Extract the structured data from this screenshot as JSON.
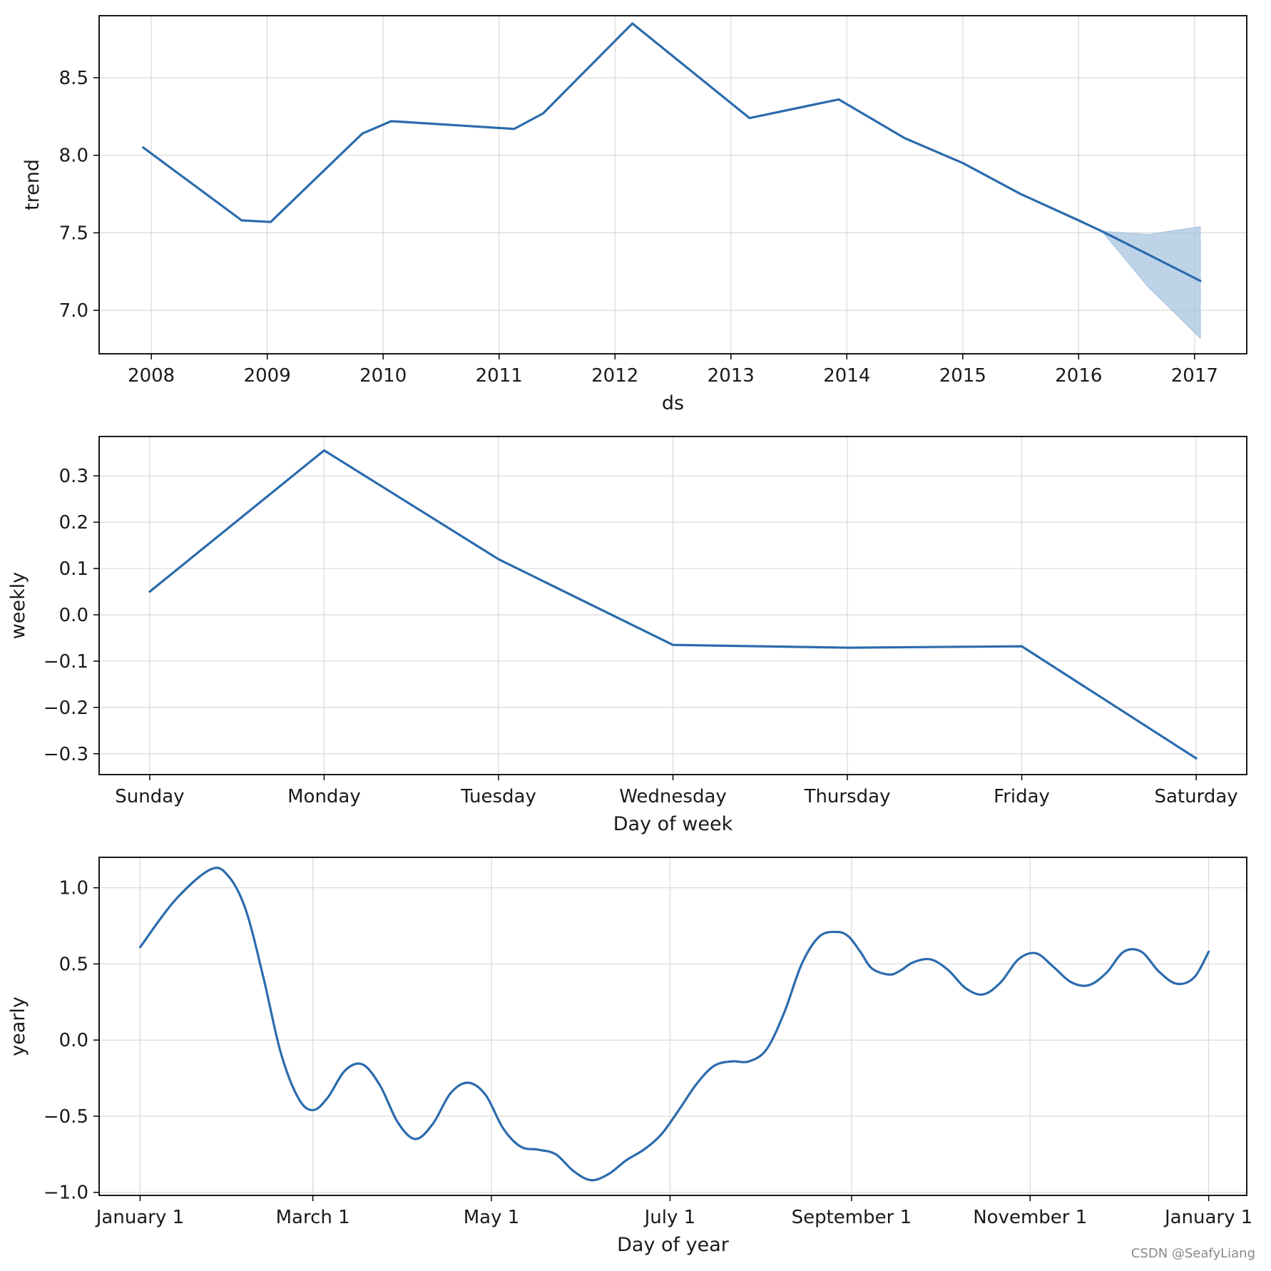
{
  "watermark": "CSDN @SeafyLiang",
  "colors": {
    "line": "#2b6bad",
    "band": "#a9c4e0",
    "grid": "#d9d9d9",
    "axis": "#000000"
  },
  "chart_data": [
    {
      "type": "line",
      "id": "trend",
      "xlabel": "ds",
      "ylabel": "trend",
      "xlim": [
        2007.55,
        2017.45
      ],
      "ylim": [
        6.72,
        8.9
      ],
      "xticks": [
        2008,
        2009,
        2010,
        2011,
        2012,
        2013,
        2014,
        2015,
        2016,
        2017
      ],
      "xticklabels": [
        "2008",
        "2009",
        "2010",
        "2011",
        "2012",
        "2013",
        "2014",
        "2015",
        "2016",
        "2017"
      ],
      "yticks": [
        7.0,
        7.5,
        8.0,
        8.5
      ],
      "yticklabels": [
        "7.0",
        "7.5",
        "8.0",
        "8.5"
      ],
      "series": [
        {
          "name": "trend",
          "x": [
            2007.93,
            2008.78,
            2009.03,
            2009.82,
            2010.07,
            2011.13,
            2011.38,
            2012.15,
            2013.16,
            2013.93,
            2014.5,
            2015.0,
            2015.5,
            2016.0,
            2016.2,
            2016.6,
            2017.05
          ],
          "y": [
            8.05,
            7.58,
            7.57,
            8.14,
            8.22,
            8.17,
            8.27,
            8.85,
            8.24,
            8.36,
            8.11,
            7.95,
            7.75,
            7.58,
            7.51,
            7.36,
            7.19
          ]
        }
      ],
      "uncertainty": {
        "x": [
          2016.2,
          2016.6,
          2017.05
        ],
        "lower": [
          7.51,
          7.15,
          6.82
        ],
        "upper": [
          7.51,
          7.49,
          7.54
        ]
      }
    },
    {
      "type": "line",
      "id": "weekly",
      "xlabel": "Day of week",
      "ylabel": "weekly",
      "xlim": [
        -0.29,
        6.29
      ],
      "ylim": [
        -0.345,
        0.385
      ],
      "xticks": [
        0,
        1,
        2,
        3,
        4,
        5,
        6
      ],
      "xticklabels": [
        "Sunday",
        "Monday",
        "Tuesday",
        "Wednesday",
        "Thursday",
        "Friday",
        "Saturday"
      ],
      "yticks": [
        -0.3,
        -0.2,
        -0.1,
        0.0,
        0.1,
        0.2,
        0.3
      ],
      "yticklabels": [
        "−0.3",
        "−0.2",
        "−0.1",
        "0.0",
        "0.1",
        "0.2",
        "0.3"
      ],
      "series": [
        {
          "name": "weekly",
          "x": [
            0,
            1,
            2,
            3,
            4,
            5,
            6
          ],
          "y": [
            0.05,
            0.355,
            0.12,
            -0.065,
            -0.071,
            -0.068,
            -0.31
          ]
        }
      ]
    },
    {
      "type": "line",
      "id": "yearly",
      "xlabel": "Day of year",
      "ylabel": "yearly",
      "xlim": [
        -14,
        378
      ],
      "ylim": [
        -1.02,
        1.2
      ],
      "xticks": [
        0,
        59,
        120,
        181,
        243,
        304,
        365
      ],
      "xticklabels": [
        "January 1",
        "March 1",
        "May 1",
        "July 1",
        "September 1",
        "November 1",
        "January 1"
      ],
      "yticks": [
        -1.0,
        -0.5,
        0.0,
        0.5,
        1.0
      ],
      "yticklabels": [
        "−1.0",
        "−0.5",
        "0.0",
        "0.5",
        "1.0"
      ],
      "series": [
        {
          "name": "yearly",
          "x": [
            0,
            12,
            24,
            30,
            36,
            42,
            48,
            54,
            59,
            64,
            70,
            76,
            82,
            88,
            94,
            100,
            106,
            112,
            118,
            124,
            130,
            136,
            142,
            148,
            154,
            160,
            166,
            172,
            178,
            184,
            190,
            196,
            202,
            208,
            214,
            220,
            226,
            232,
            238,
            242,
            246,
            250,
            256,
            260,
            264,
            270,
            276,
            282,
            288,
            294,
            300,
            306,
            312,
            318,
            324,
            330,
            336,
            342,
            348,
            354,
            360,
            365
          ],
          "y": [
            0.61,
            0.92,
            1.12,
            1.08,
            0.86,
            0.42,
            -0.08,
            -0.38,
            -0.46,
            -0.38,
            -0.2,
            -0.16,
            -0.3,
            -0.54,
            -0.65,
            -0.55,
            -0.35,
            -0.28,
            -0.36,
            -0.58,
            -0.7,
            -0.72,
            -0.75,
            -0.86,
            -0.92,
            -0.88,
            -0.79,
            -0.72,
            -0.62,
            -0.46,
            -0.29,
            -0.17,
            -0.14,
            -0.14,
            -0.06,
            0.18,
            0.5,
            0.68,
            0.71,
            0.68,
            0.58,
            0.47,
            0.43,
            0.46,
            0.51,
            0.53,
            0.46,
            0.34,
            0.3,
            0.38,
            0.53,
            0.57,
            0.48,
            0.38,
            0.36,
            0.44,
            0.58,
            0.58,
            0.45,
            0.37,
            0.41,
            0.58
          ]
        }
      ]
    }
  ]
}
